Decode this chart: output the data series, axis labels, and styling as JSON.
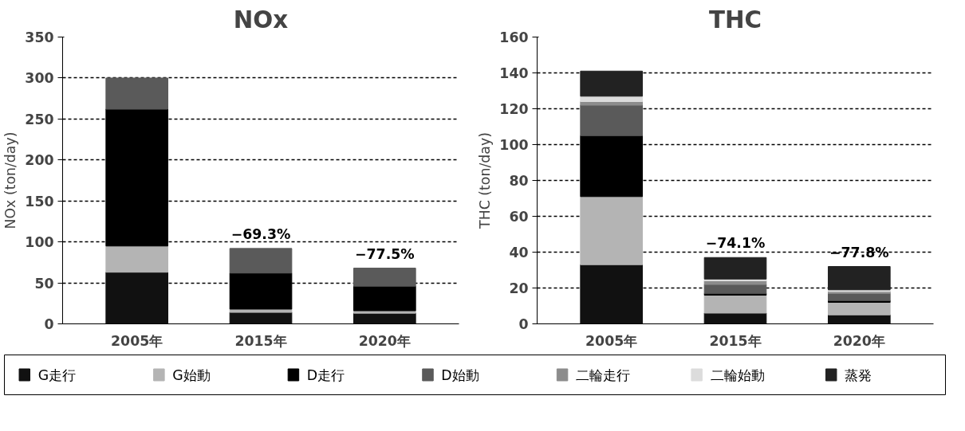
{
  "chart_data": [
    {
      "type": "bar",
      "stacked": true,
      "title": "NOx",
      "ylabel": "NOx (ton/day)",
      "categories": [
        "2005年",
        "2015年",
        "2020年"
      ],
      "ylim": [
        0,
        350
      ],
      "yticks": [
        0,
        50,
        100,
        150,
        200,
        250,
        300,
        350
      ],
      "grid": "y",
      "series": [
        {
          "color": "#111111",
          "values": [
            63,
            14,
            13
          ]
        },
        {
          "color": "#b4b4b4",
          "values": [
            32,
            4,
            3
          ]
        },
        {
          "color": "#000000",
          "values": [
            167,
            44,
            30
          ]
        },
        {
          "color": "#5a5a5a",
          "values": [
            38,
            30,
            22
          ]
        }
      ],
      "annotations": [
        {
          "text": "−69.3%",
          "x": "2015年",
          "y": 92
        },
        {
          "text": "−77.5%",
          "x": "2020年",
          "y": 68
        }
      ]
    },
    {
      "type": "bar",
      "stacked": true,
      "title": "THC",
      "ylabel": "THC (ton/day)",
      "categories": [
        "2005年",
        "2015年",
        "2020年"
      ],
      "ylim": [
        0,
        160
      ],
      "yticks": [
        0,
        20,
        40,
        60,
        80,
        100,
        120,
        140,
        160
      ],
      "grid": "y",
      "legend": "bottom",
      "series": [
        {
          "name": "G走行",
          "color": "#111111",
          "values": [
            33,
            6,
            5
          ]
        },
        {
          "name": "G始動",
          "color": "#b4b4b4",
          "values": [
            38,
            10,
            7
          ]
        },
        {
          "name": "D走行",
          "color": "#000000",
          "values": [
            34,
            1,
            1
          ]
        },
        {
          "name": "D始動",
          "color": "#5a5a5a",
          "values": [
            17,
            5,
            4
          ]
        },
        {
          "name": "二輪走行",
          "color": "#8c8c8c",
          "values": [
            2,
            2,
            1
          ]
        },
        {
          "name": "二輪始動",
          "color": "#dcdcdc",
          "values": [
            3,
            1,
            1
          ]
        },
        {
          "name": "蒸発",
          "color": "#222222",
          "values": [
            14,
            12,
            13
          ]
        }
      ],
      "annotations": [
        {
          "text": "−74.1%",
          "x": "2015年",
          "y": 37
        },
        {
          "text": "−77.8%",
          "x": "2020年",
          "y": 32
        }
      ]
    }
  ]
}
